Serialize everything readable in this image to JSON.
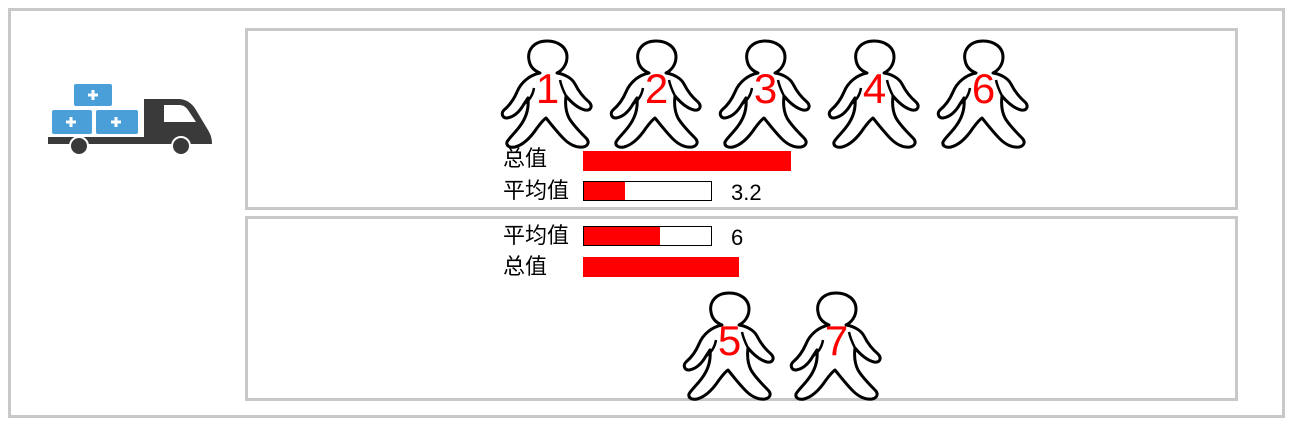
{
  "colors": {
    "accent": "#ff0000",
    "panel_border": "#c8c8c8",
    "truck_box": "#4a9fd9",
    "truck_body": "#3a3a3a"
  },
  "icons": {
    "truck": "delivery-truck-icon",
    "person": "walking-person-icon"
  },
  "group_top": {
    "people": [
      "1",
      "2",
      "3",
      "4",
      "6"
    ],
    "total_label": "总值",
    "average_label": "平均值",
    "average_value": "3.2",
    "average_fill_fraction": 0.32,
    "total_fraction": 1.0
  },
  "group_bottom": {
    "people": [
      "5",
      "7"
    ],
    "total_label": "总值",
    "average_label": "平均值",
    "average_value": "6",
    "average_fill_fraction": 0.6,
    "total_fraction": 0.75
  }
}
